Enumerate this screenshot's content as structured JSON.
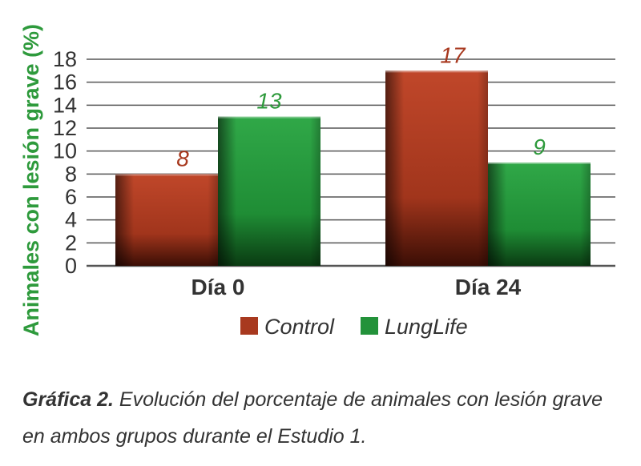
{
  "chart_data": {
    "type": "bar",
    "categories": [
      "Día 0",
      "Día 24"
    ],
    "series": [
      {
        "name": "Control",
        "values": [
          8,
          17
        ]
      },
      {
        "name": "LungLife",
        "values": [
          13,
          9
        ]
      }
    ],
    "data_labels": [
      [
        "8",
        "17"
      ],
      [
        "13",
        "9"
      ]
    ],
    "title": "",
    "xlabel": "",
    "ylabel": "Animales con lesión grave (%)",
    "ylim": [
      0,
      18
    ],
    "yticks": [
      0,
      2,
      4,
      6,
      8,
      10,
      12,
      14,
      16,
      18
    ],
    "grid": true,
    "legend_position": "bottom",
    "colors": {
      "Control": "#a8391f",
      "LungLife": "#23923a",
      "control_label": "#a8391f",
      "lunglife_label": "#2e9a3c",
      "ylabel": "#2e9a3c"
    }
  },
  "caption": {
    "bold": "Gráfica 2.",
    "text": " Evolución del porcentaje de animales con lesión grave en ambos grupos durante el Estudio 1."
  }
}
